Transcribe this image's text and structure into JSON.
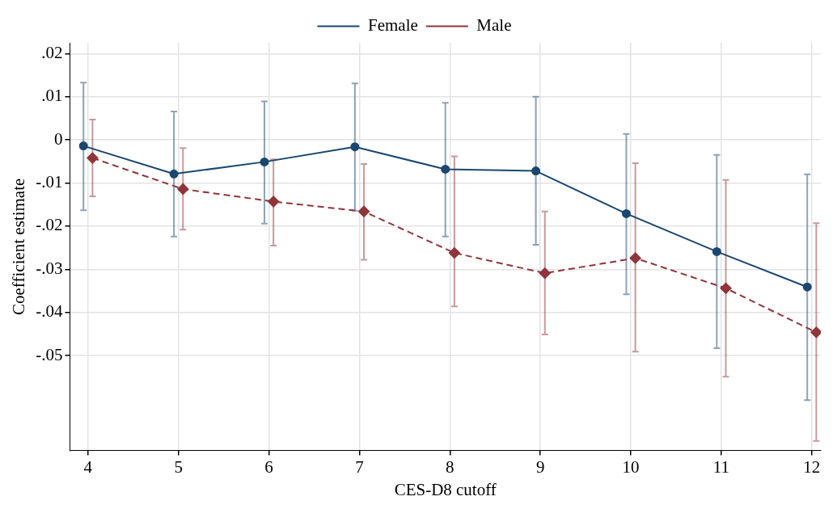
{
  "chart_data": {
    "type": "line",
    "xlabel": "CES-D8 cutoff",
    "ylabel": "Coefficient estimate",
    "xlim": [
      3.8,
      12.1
    ],
    "xticks": [
      4,
      5,
      6,
      7,
      8,
      9,
      10,
      11,
      12
    ],
    "ylim": [
      -0.072,
      0.0225
    ],
    "yticks": [
      {
        "value": 0.02,
        "label": ".02"
      },
      {
        "value": 0.01,
        "label": ".01"
      },
      0,
      {
        "value": -0.01,
        "label": "-.01"
      },
      {
        "value": -0.02,
        "label": "-.02"
      },
      {
        "value": -0.03,
        "label": "-.03"
      },
      {
        "value": -0.04,
        "label": "-.04"
      },
      {
        "value": -0.05,
        "label": "-.05"
      }
    ],
    "grid": true,
    "legend": "top",
    "series": [
      {
        "name": "Female",
        "color": "#1a476f",
        "marker": "circle",
        "line_style": "solid",
        "x": [
          3.95,
          4.95,
          5.95,
          6.95,
          7.95,
          8.95,
          9.95,
          10.95,
          11.95
        ],
        "values": [
          -0.0014,
          -0.0079,
          -0.0051,
          -0.0016,
          -0.0068,
          -0.0072,
          -0.0171,
          -0.0259,
          -0.0341
        ],
        "errors": [
          [
            -0.0163,
            0.0133
          ],
          [
            -0.0224,
            0.0066
          ],
          [
            -0.0194,
            0.0089
          ],
          [
            -0.0164,
            0.0131
          ],
          [
            -0.0224,
            0.0086
          ],
          [
            -0.0243,
            0.01
          ],
          [
            -0.0358,
            0.0014
          ],
          [
            -0.0483,
            -0.0035
          ],
          [
            -0.0603,
            -0.008
          ]
        ]
      },
      {
        "name": "Male",
        "color": "#90353b",
        "marker": "diamond",
        "line_style": "dashed",
        "x": [
          4.05,
          5.05,
          6.05,
          7.05,
          8.05,
          9.05,
          10.05,
          11.05,
          12.05
        ],
        "values": [
          -0.0042,
          -0.0114,
          -0.0143,
          -0.0166,
          -0.0262,
          -0.0309,
          -0.0274,
          -0.0344,
          -0.0446
        ],
        "errors": [
          [
            -0.0131,
            0.0047
          ],
          [
            -0.0208,
            -0.0019
          ],
          [
            -0.0245,
            -0.0045
          ],
          [
            -0.0278,
            -0.0056
          ],
          [
            -0.0386,
            -0.0038
          ],
          [
            -0.0451,
            -0.0166
          ],
          [
            -0.0491,
            -0.0054
          ],
          [
            -0.0549,
            -0.0093
          ],
          [
            -0.0698,
            -0.0193
          ]
        ]
      }
    ]
  }
}
